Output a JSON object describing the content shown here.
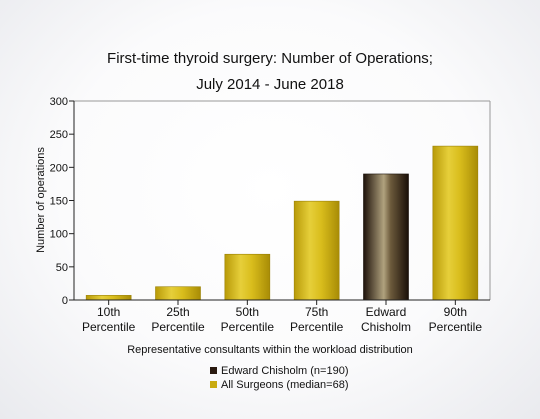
{
  "chart_data": {
    "type": "bar",
    "title": [
      "First-time thyroid surgery: Number of Operations;",
      "July 2014 - June 2018"
    ],
    "xlabel": "Representative consultants within the workload distribution",
    "ylabel": "Number of operations",
    "ylim": [
      0,
      300
    ],
    "yticks": [
      0,
      50,
      100,
      150,
      200,
      250,
      300
    ],
    "categories": [
      [
        "10th",
        "Percentile"
      ],
      [
        "25th",
        "Percentile"
      ],
      [
        "50th",
        "Percentile"
      ],
      [
        "75th",
        "Percentile"
      ],
      [
        "Edward",
        "Chisholm"
      ],
      [
        "90th",
        "Percentile"
      ]
    ],
    "values": [
      7,
      20,
      69,
      149,
      190,
      232
    ],
    "series_index": [
      1,
      1,
      1,
      1,
      0,
      1
    ],
    "grid": false,
    "legend_position": "bottom",
    "series": [
      {
        "name": "Edward Chisholm (n=190)",
        "color": "#2a1a10"
      },
      {
        "name": "All Surgeons (median=68)",
        "color": "#c9ab10"
      }
    ]
  }
}
